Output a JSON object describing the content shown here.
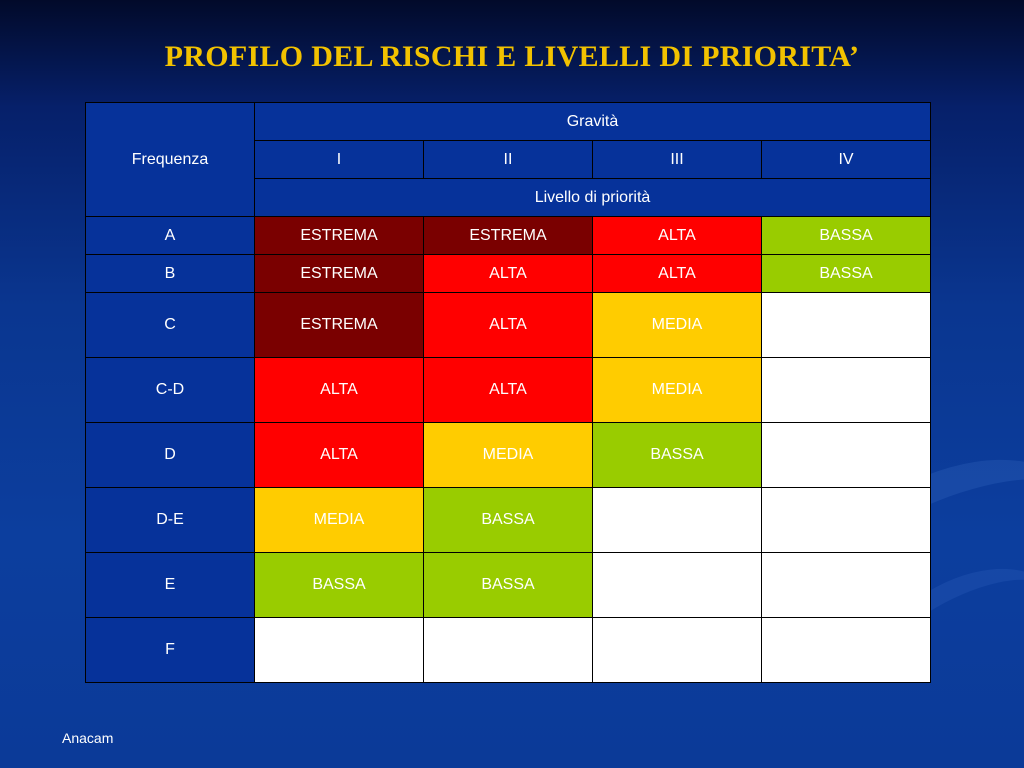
{
  "title": "PROFILO DEL RISCHI E LIVELLI DI PRIORITA’",
  "table": {
    "row_header_label": "Frequenza",
    "gravity_label": "Gravità",
    "gravity_levels": [
      "I",
      "II",
      "III",
      "IV"
    ],
    "priority_label": "Livello di priorità",
    "rows": [
      {
        "freq": "A",
        "cells": [
          {
            "text": "ESTREMA",
            "level": "estrema"
          },
          {
            "text": "ESTREMA",
            "level": "estrema"
          },
          {
            "text": "ALTA",
            "level": "alta"
          },
          {
            "text": "BASSA",
            "level": "bassa"
          }
        ]
      },
      {
        "freq": "B",
        "cells": [
          {
            "text": "ESTREMA",
            "level": "estrema"
          },
          {
            "text": "ALTA",
            "level": "alta"
          },
          {
            "text": "ALTA",
            "level": "alta"
          },
          {
            "text": "BASSA",
            "level": "bassa"
          }
        ]
      },
      {
        "freq": "C",
        "cells": [
          {
            "text": "ESTREMA",
            "level": "estrema"
          },
          {
            "text": "ALTA",
            "level": "alta"
          },
          {
            "text": "MEDIA",
            "level": "media"
          },
          {
            "text": "",
            "level": "empty"
          }
        ]
      },
      {
        "freq": "C-D",
        "cells": [
          {
            "text": "ALTA",
            "level": "alta"
          },
          {
            "text": "ALTA",
            "level": "alta"
          },
          {
            "text": "MEDIA",
            "level": "media"
          },
          {
            "text": "",
            "level": "empty"
          }
        ]
      },
      {
        "freq": "D",
        "cells": [
          {
            "text": "ALTA",
            "level": "alta"
          },
          {
            "text": "MEDIA",
            "level": "media"
          },
          {
            "text": "BASSA",
            "level": "bassa"
          },
          {
            "text": "",
            "level": "empty"
          }
        ]
      },
      {
        "freq": "D-E",
        "cells": [
          {
            "text": "MEDIA",
            "level": "media"
          },
          {
            "text": "BASSA",
            "level": "bassa"
          },
          {
            "text": "",
            "level": "empty"
          },
          {
            "text": "",
            "level": "empty"
          }
        ]
      },
      {
        "freq": "E",
        "cells": [
          {
            "text": "BASSA",
            "level": "bassa"
          },
          {
            "text": "BASSA",
            "level": "bassa"
          },
          {
            "text": "",
            "level": "empty"
          },
          {
            "text": "",
            "level": "empty"
          }
        ]
      },
      {
        "freq": "F",
        "cells": [
          {
            "text": "",
            "level": "empty"
          },
          {
            "text": "",
            "level": "empty"
          },
          {
            "text": "",
            "level": "empty"
          },
          {
            "text": "",
            "level": "empty"
          }
        ]
      }
    ]
  },
  "colors": {
    "estrema": "#7a0000",
    "alta": "#ff0000",
    "media": "#ffcc00",
    "bassa": "#99cc00",
    "empty": "#ffffff",
    "background": "#0a3690",
    "title": "#f2c200"
  },
  "footer": "Anacam"
}
